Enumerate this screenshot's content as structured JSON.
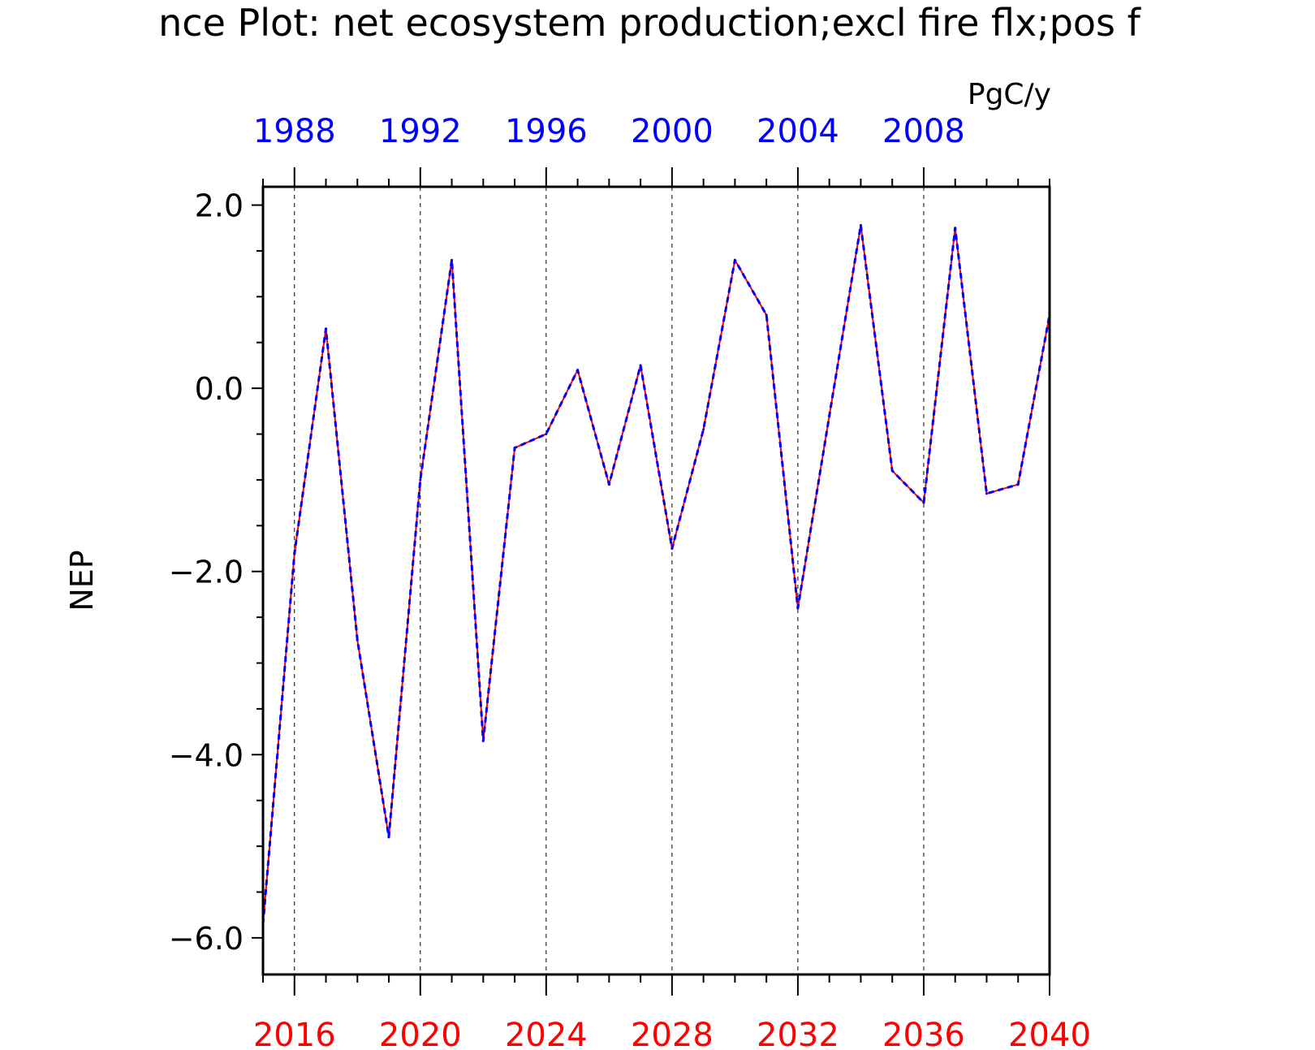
{
  "title": "nce Plot: net ecosystem production;excl fire flx;pos f",
  "units": "PgC/y",
  "colors": {
    "frame": "#000000",
    "bottom_axis_labels": "#ff0000",
    "top_axis_labels": "#0000ff",
    "series_solid": "#ff0000",
    "series_dashed": "#0000ff",
    "grid": "#000000"
  },
  "chart_data": {
    "type": "line",
    "title": "nce Plot: net ecosystem production;excl fire flx;pos f",
    "ylabel": "NEP",
    "xlabel": "",
    "units_label": "PgC/y",
    "ylim": [
      -6.4,
      2.2
    ],
    "xlim": [
      2015,
      2040
    ],
    "yticks_major": [
      -6.0,
      -4.0,
      -2.0,
      0.0,
      2.0
    ],
    "ytick_labels": [
      "−6.0",
      "−4.0",
      "−2.0",
      "0.0",
      "2.0"
    ],
    "x_bottom_ticks": [
      2016,
      2020,
      2024,
      2028,
      2032,
      2036,
      2040
    ],
    "x_bottom_labels": [
      "2016",
      "2020",
      "2024",
      "2028",
      "2032",
      "2036",
      "2040"
    ],
    "x_top_labels": [
      "1988",
      "1992",
      "1996",
      "2000",
      "2004",
      "2008"
    ],
    "x_top_offset_years": 28,
    "grid": "dashed vertical at bottom-axis major ticks",
    "x": [
      2015,
      2016,
      2017,
      2018,
      2019,
      2020,
      2021,
      2022,
      2023,
      2024,
      2025,
      2026,
      2027,
      2028,
      2029,
      2030,
      2031,
      2032,
      2033,
      2034,
      2035,
      2036,
      2037,
      2038,
      2039,
      2040
    ],
    "series": [
      {
        "style": "solid",
        "color": "#ff0000",
        "values": [
          -5.85,
          -1.8,
          0.65,
          -2.75,
          -4.9,
          -1.0,
          1.4,
          -3.85,
          -0.65,
          -0.5,
          0.2,
          -1.05,
          0.25,
          -1.75,
          -0.45,
          1.4,
          0.8,
          -2.4,
          -0.3,
          1.78,
          -0.9,
          -1.25,
          1.75,
          -1.15,
          -1.05,
          0.8
        ]
      },
      {
        "style": "dashed",
        "color": "#0000ff",
        "values": [
          -5.85,
          -1.8,
          0.65,
          -2.75,
          -4.9,
          -1.0,
          1.4,
          -3.85,
          -0.65,
          -0.5,
          0.2,
          -1.05,
          0.25,
          -1.75,
          -0.45,
          1.4,
          0.8,
          -2.4,
          -0.3,
          1.78,
          -0.9,
          -1.25,
          1.75,
          -1.15,
          -1.05,
          0.8
        ]
      }
    ]
  }
}
